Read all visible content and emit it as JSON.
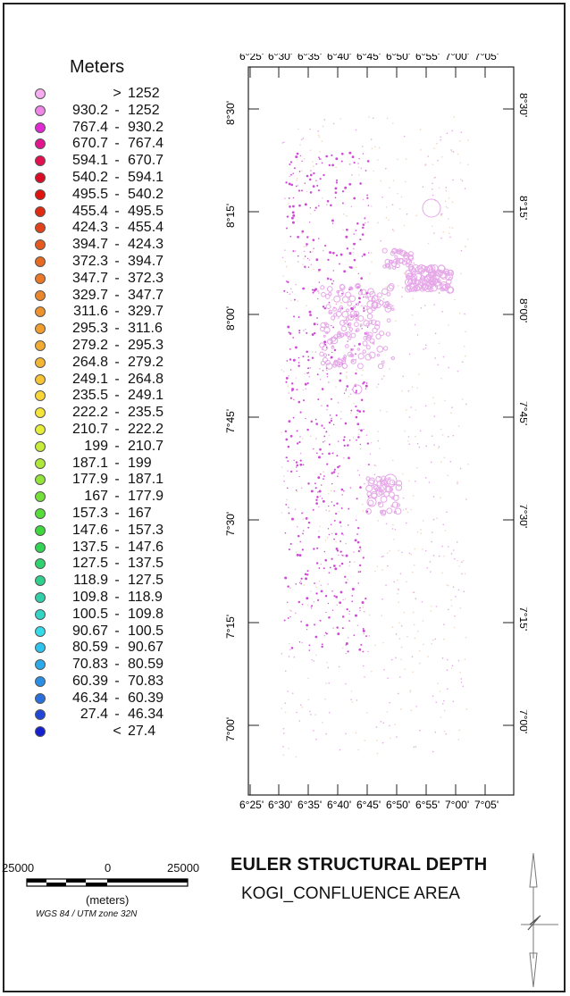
{
  "legend": {
    "title": "Meters",
    "classes": [
      {
        "a": "",
        "sep": ">",
        "b": "1252",
        "color": "#f7aef0"
      },
      {
        "a": "930.2",
        "sep": "-",
        "b": "1252",
        "color": "#ee86e8"
      },
      {
        "a": "767.4",
        "sep": "-",
        "b": "930.2",
        "color": "#e02ad2"
      },
      {
        "a": "670.7",
        "sep": "-",
        "b": "767.4",
        "color": "#e2148e"
      },
      {
        "a": "594.1",
        "sep": "-",
        "b": "670.7",
        "color": "#e2104e"
      },
      {
        "a": "540.2",
        "sep": "-",
        "b": "594.1",
        "color": "#dc0c26"
      },
      {
        "a": "495.5",
        "sep": "-",
        "b": "540.2",
        "color": "#e2120e"
      },
      {
        "a": "455.4",
        "sep": "-",
        "b": "495.5",
        "color": "#e22a12"
      },
      {
        "a": "424.3",
        "sep": "-",
        "b": "455.4",
        "color": "#e2421a"
      },
      {
        "a": "394.7",
        "sep": "-",
        "b": "424.3",
        "color": "#e45a1e"
      },
      {
        "a": "372.3",
        "sep": "-",
        "b": "394.7",
        "color": "#e66a22"
      },
      {
        "a": "347.7",
        "sep": "-",
        "b": "372.3",
        "color": "#ea7826"
      },
      {
        "a": "329.7",
        "sep": "-",
        "b": "347.7",
        "color": "#ec862a"
      },
      {
        "a": "311.6",
        "sep": "-",
        "b": "329.7",
        "color": "#ee922e"
      },
      {
        "a": "295.3",
        "sep": "-",
        "b": "311.6",
        "color": "#f09e2e"
      },
      {
        "a": "279.2",
        "sep": "-",
        "b": "295.3",
        "color": "#f2aa30"
      },
      {
        "a": "264.8",
        "sep": "-",
        "b": "279.2",
        "color": "#f4b632"
      },
      {
        "a": "249.1",
        "sep": "-",
        "b": "264.8",
        "color": "#f6c434"
      },
      {
        "a": "235.5",
        "sep": "-",
        "b": "249.1",
        "color": "#f8d636"
      },
      {
        "a": "222.2",
        "sep": "-",
        "b": "235.5",
        "color": "#f6e438"
      },
      {
        "a": "210.7",
        "sep": "-",
        "b": "222.2",
        "color": "#e6ee3a"
      },
      {
        "a": "199",
        "sep": "-",
        "b": "210.7",
        "color": "#c8ec3a"
      },
      {
        "a": "187.1",
        "sep": "-",
        "b": "199",
        "color": "#aee83a"
      },
      {
        "a": "177.9",
        "sep": "-",
        "b": "187.1",
        "color": "#92e43a"
      },
      {
        "a": "167",
        "sep": "-",
        "b": "177.9",
        "color": "#76e03a"
      },
      {
        "a": "157.3",
        "sep": "-",
        "b": "167",
        "color": "#58dc3a"
      },
      {
        "a": "147.6",
        "sep": "-",
        "b": "157.3",
        "color": "#3ed83e"
      },
      {
        "a": "137.5",
        "sep": "-",
        "b": "147.6",
        "color": "#32d456"
      },
      {
        "a": "127.5",
        "sep": "-",
        "b": "137.5",
        "color": "#30d270"
      },
      {
        "a": "118.9",
        "sep": "-",
        "b": "127.5",
        "color": "#30d08c"
      },
      {
        "a": "109.8",
        "sep": "-",
        "b": "118.9",
        "color": "#32d0aa"
      },
      {
        "a": "100.5",
        "sep": "-",
        "b": "109.8",
        "color": "#34d4c6"
      },
      {
        "a": "90.67",
        "sep": "-",
        "b": "100.5",
        "color": "#34dcea"
      },
      {
        "a": "80.59",
        "sep": "-",
        "b": "90.67",
        "color": "#2ec4ee"
      },
      {
        "a": "70.83",
        "sep": "-",
        "b": "80.59",
        "color": "#2aaaea"
      },
      {
        "a": "60.39",
        "sep": "-",
        "b": "70.83",
        "color": "#2a8ee4"
      },
      {
        "a": "46.34",
        "sep": "-",
        "b": "60.39",
        "color": "#2a70dc"
      },
      {
        "a": "27.4",
        "sep": "-",
        "b": "46.34",
        "color": "#2046d6"
      },
      {
        "a": "",
        "sep": "<",
        "b": "27.4",
        "color": "#1420d0"
      }
    ]
  },
  "map": {
    "lon_ticks": [
      "6°25'",
      "6°30'",
      "6°35'",
      "6°40'",
      "6°45'",
      "6°50'",
      "6°55'",
      "7°00'",
      "7°05'"
    ],
    "lat_ticks": [
      "8°30'",
      "8°15'",
      "8°00'",
      "7°45'",
      "7°30'",
      "7°15'",
      "7°00'"
    ],
    "dot_color_dense": "#cf4bd6",
    "dot_color_light": "#e6a8e8",
    "dot_color_faint": "#eed8c0"
  },
  "title": {
    "line1": "EULER STRUCTURAL DEPTH",
    "line2": "KOGI_CONFLUENCE AREA"
  },
  "scalebar": {
    "left_label": "25000",
    "mid_label": "0",
    "right_label": "25000",
    "units": "(meters)",
    "projection": "WGS 84 / UTM zone 32N"
  }
}
